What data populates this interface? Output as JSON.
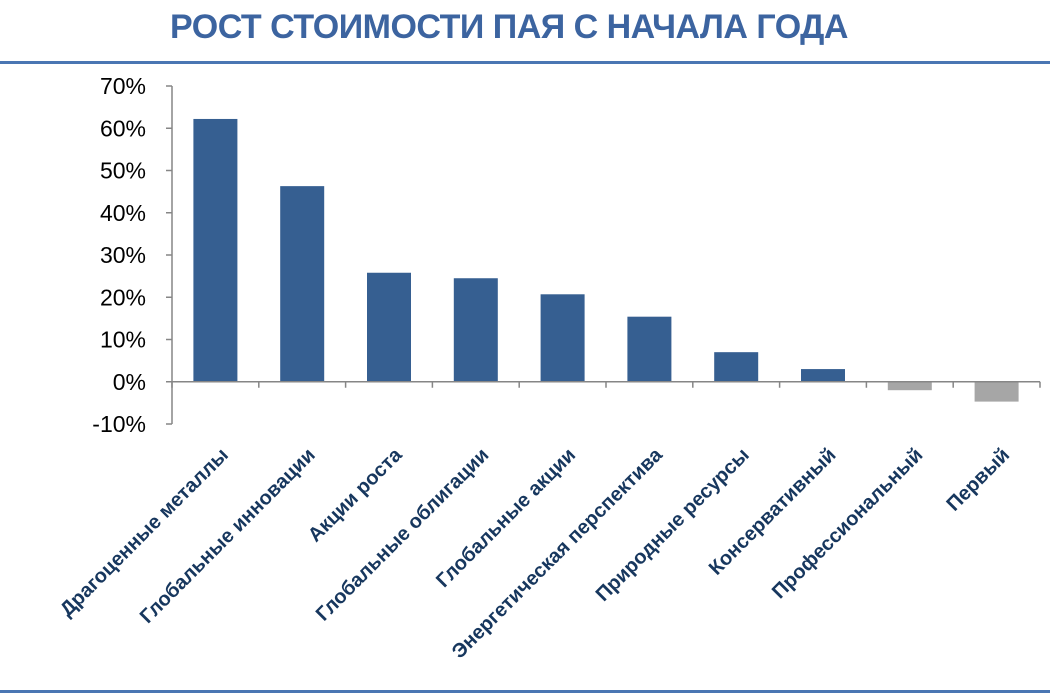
{
  "title": "РОСТ СТОИМОСТИ ПАЯ С НАЧАЛА ГОДА",
  "colors": {
    "title": "#3c64a0",
    "rule": "#4a76b3",
    "positive_bar": "#365f91",
    "negative_bar": "#a6a6a6",
    "axis": "#868686",
    "tick_label": "#000000",
    "category_label": "#17375e"
  },
  "chart_data": {
    "type": "bar",
    "title": "РОСТ СТОИМОСТИ ПАЯ С НАЧАЛА ГОДА",
    "xlabel": "",
    "ylabel": "",
    "ylim": [
      -10,
      70
    ],
    "y_ticks": [
      -10,
      0,
      10,
      20,
      30,
      40,
      50,
      60,
      70
    ],
    "y_tick_labels": [
      "-10%",
      "0%",
      "10%",
      "20%",
      "30%",
      "40%",
      "50%",
      "60%",
      "70%"
    ],
    "unit": "%",
    "grid": false,
    "legend": "none",
    "categories": [
      "Драгоценные металлы",
      "Глобальные инновации",
      "Акции роста",
      "Глобальные облигации",
      "Глобальные акции",
      "Энергетическая перспектива",
      "Природные ресурсы",
      "Консервативный",
      "Профессиональный",
      "Первый"
    ],
    "values": [
      62.2,
      46.3,
      25.8,
      24.5,
      20.7,
      15.4,
      7.0,
      3.0,
      -2.0,
      -4.7
    ]
  }
}
